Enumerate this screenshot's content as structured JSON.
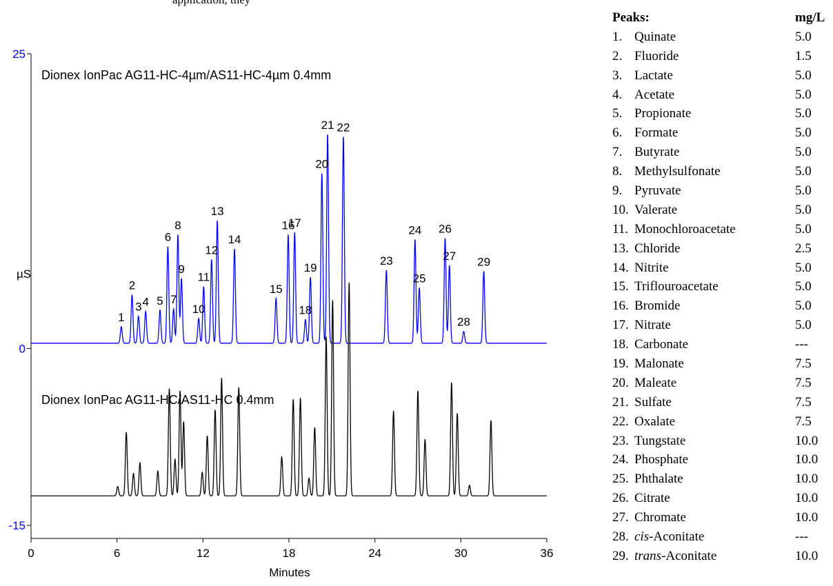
{
  "top_text": "application, they",
  "chart_data": {
    "type": "line",
    "xlabel": "Minutes",
    "ylabel": "µS",
    "x_ticks": [
      "0",
      "6",
      "12",
      "18",
      "24",
      "30",
      "36"
    ],
    "xlim": [
      0,
      36
    ],
    "y_ticks": [
      {
        "label": "25",
        "value": 25,
        "color": "#0000ff"
      },
      {
        "label": "0",
        "value": 0,
        "color": "#0000ff"
      },
      {
        "label": "-15",
        "value": -15,
        "color": "#0000ff"
      }
    ],
    "ylim": [
      -15,
      25
    ],
    "series": [
      {
        "name": "Dionex IonPac AG11-HC-4µm/AS11-HC-4µm 0.4mm",
        "color": "#0000ff",
        "baseline": 0.45,
        "peaks": [
          {
            "label": "1",
            "t": 6.3,
            "h": 1.4
          },
          {
            "label": "2",
            "t": 7.05,
            "h": 4.1
          },
          {
            "label": "3",
            "t": 7.5,
            "h": 2.3
          },
          {
            "label": "4",
            "t": 8.0,
            "h": 2.7
          },
          {
            "label": "5",
            "t": 9.0,
            "h": 2.8
          },
          {
            "label": "6",
            "t": 9.55,
            "h": 8.2
          },
          {
            "label": "7",
            "t": 9.95,
            "h": 2.9
          },
          {
            "label": "8",
            "t": 10.25,
            "h": 9.2
          },
          {
            "label": "9",
            "t": 10.5,
            "h": 5.5
          },
          {
            "label": "10",
            "t": 11.7,
            "h": 2.1
          },
          {
            "label": "11",
            "t": 12.05,
            "h": 4.8
          },
          {
            "label": "12",
            "t": 12.6,
            "h": 7.1
          },
          {
            "label": "13",
            "t": 13.0,
            "h": 10.4
          },
          {
            "label": "14",
            "t": 14.2,
            "h": 8.0
          },
          {
            "label": "15",
            "t": 17.1,
            "h": 3.8
          },
          {
            "label": "16",
            "t": 17.95,
            "h": 9.2
          },
          {
            "label": "17",
            "t": 18.4,
            "h": 9.4
          },
          {
            "label": "18",
            "t": 19.15,
            "h": 2.0
          },
          {
            "label": "19",
            "t": 19.5,
            "h": 5.6
          },
          {
            "label": "20",
            "t": 20.3,
            "h": 14.4
          },
          {
            "label": "21",
            "t": 20.7,
            "h": 17.7
          },
          {
            "label": "22",
            "t": 21.8,
            "h": 17.5
          },
          {
            "label": "23",
            "t": 24.8,
            "h": 6.2
          },
          {
            "label": "24",
            "t": 26.8,
            "h": 8.8
          },
          {
            "label": "25",
            "t": 27.1,
            "h": 4.7
          },
          {
            "label": "26",
            "t": 28.9,
            "h": 8.9
          },
          {
            "label": "27",
            "t": 29.2,
            "h": 6.6
          },
          {
            "label": "28",
            "t": 30.2,
            "h": 1.0
          },
          {
            "label": "29",
            "t": 31.6,
            "h": 6.1
          }
        ]
      },
      {
        "name": "Dionex IonPac AG11-HC/AS11-HC 0.4mm",
        "color": "#000000",
        "baseline": -12.5,
        "peaks": [
          {
            "t": 6.05,
            "h": 0.8
          },
          {
            "t": 6.65,
            "h": 5.4
          },
          {
            "t": 7.15,
            "h": 1.9
          },
          {
            "t": 7.6,
            "h": 2.8
          },
          {
            "t": 8.85,
            "h": 2.1
          },
          {
            "t": 9.65,
            "h": 9.1
          },
          {
            "t": 10.05,
            "h": 3.1
          },
          {
            "t": 10.4,
            "h": 8.9
          },
          {
            "t": 10.65,
            "h": 6.3
          },
          {
            "t": 11.95,
            "h": 2.0
          },
          {
            "t": 12.3,
            "h": 5.1
          },
          {
            "t": 12.85,
            "h": 7.3
          },
          {
            "t": 13.3,
            "h": 10.0
          },
          {
            "t": 14.5,
            "h": 9.2
          },
          {
            "t": 17.5,
            "h": 3.3
          },
          {
            "t": 18.3,
            "h": 8.2
          },
          {
            "t": 18.8,
            "h": 8.3
          },
          {
            "t": 19.4,
            "h": 1.5
          },
          {
            "t": 19.8,
            "h": 5.8
          },
          {
            "t": 20.6,
            "h": 13.5
          },
          {
            "t": 21.05,
            "h": 16.6
          },
          {
            "t": 22.2,
            "h": 18.1
          },
          {
            "t": 25.3,
            "h": 7.2
          },
          {
            "t": 27.0,
            "h": 8.9
          },
          {
            "t": 27.5,
            "h": 4.8
          },
          {
            "t": 29.35,
            "h": 9.6
          },
          {
            "t": 29.75,
            "h": 7.0
          },
          {
            "t": 30.6,
            "h": 0.9
          },
          {
            "t": 32.1,
            "h": 6.4
          }
        ]
      }
    ]
  },
  "legend": {
    "header_name": "Peaks:",
    "header_unit": "mg/L",
    "items": [
      {
        "num": "1.",
        "name": "Quinate",
        "value": "5.0"
      },
      {
        "num": "2.",
        "name": "Fluoride",
        "value": "1.5"
      },
      {
        "num": "3.",
        "name": "Lactate",
        "value": "5.0"
      },
      {
        "num": "4.",
        "name": "Acetate",
        "value": "5.0"
      },
      {
        "num": "5.",
        "name": "Propionate",
        "value": "5.0"
      },
      {
        "num": "6.",
        "name": "Formate",
        "value": "5.0"
      },
      {
        "num": "7.",
        "name": "Butyrate",
        "value": "5.0"
      },
      {
        "num": "8.",
        "name": "Methylsulfonate",
        "value": "5.0"
      },
      {
        "num": "9.",
        "name": "Pyruvate",
        "value": "5.0"
      },
      {
        "num": "10.",
        "name": "Valerate",
        "value": "5.0"
      },
      {
        "num": "11.",
        "name": "Monochloroacetate",
        "value": "5.0"
      },
      {
        "num": "13.",
        "name": "Chloride",
        "value": "2.5"
      },
      {
        "num": "14.",
        "name": "Nitrite",
        "value": "5.0"
      },
      {
        "num": "15.",
        "name": "Triflouroacetate",
        "value": "5.0"
      },
      {
        "num": "16.",
        "name": "Bromide",
        "value": "5.0"
      },
      {
        "num": "17.",
        "name": "Nitrate",
        "value": "5.0"
      },
      {
        "num": "18.",
        "name": "Carbonate",
        "value": "---"
      },
      {
        "num": "19.",
        "name": "Malonate",
        "value": "7.5"
      },
      {
        "num": "20.",
        "name": "Maleate",
        "value": "7.5"
      },
      {
        "num": "21.",
        "name": "Sulfate",
        "value": "7.5"
      },
      {
        "num": "22.",
        "name": "Oxalate",
        "value": "7.5"
      },
      {
        "num": "23.",
        "name": "Tungstate",
        "value": "10.0"
      },
      {
        "num": "24.",
        "name": "Phosphate",
        "value": "10.0"
      },
      {
        "num": "25.",
        "name": "Phthalate",
        "value": "10.0"
      },
      {
        "num": "26.",
        "name": "Citrate",
        "value": "10.0"
      },
      {
        "num": "27.",
        "name": "Chromate",
        "value": "10.0"
      },
      {
        "num": "28.",
        "name": "cis",
        "suffix": "-Aconitate",
        "italic": true,
        "value": "---"
      },
      {
        "num": "29.",
        "name": "trans",
        "suffix": "-Aconitate",
        "italic": true,
        "value": "10.0"
      }
    ]
  }
}
